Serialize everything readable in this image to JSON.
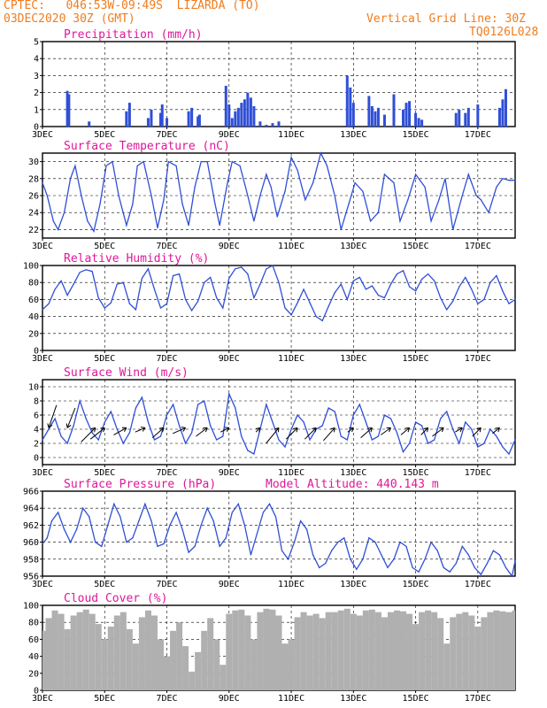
{
  "header": {
    "line1": "CPTEC:   046:53W-09:49S  LIZARDA (TO)",
    "line2": "03DEC2020 30Z (GMT)",
    "right1": "Vertical Grid Line: 30Z",
    "right2": "TQ0126L028",
    "model_altitude": "Model Altitude: 440.143 m"
  },
  "colors": {
    "header": "#f07c1e",
    "title": "#e0169a",
    "line": "#2f4fd6",
    "bar": "#2f4fd6",
    "cloud": "#b0b0b0"
  },
  "x_tick_labels": [
    "3DEC",
    "5DEC",
    "7DEC",
    "9DEC",
    "11DEC",
    "13DEC",
    "15DEC",
    "17DEC"
  ],
  "chart_data": [
    {
      "type": "bar",
      "title": "Precipitation (mm/h)",
      "ylim": [
        0,
        5
      ],
      "yticks": [
        0,
        1,
        2,
        3,
        4,
        5
      ],
      "x_start_day": 3,
      "x_end_day": 18.2,
      "x": [
        3.8,
        3.85,
        4.5,
        5.7,
        5.8,
        6.4,
        6.5,
        6.8,
        6.85,
        7.0,
        7.7,
        7.8,
        8.0,
        8.05,
        8.9,
        9.0,
        9.1,
        9.2,
        9.3,
        9.4,
        9.5,
        9.6,
        9.7,
        9.8,
        10.0,
        10.2,
        10.4,
        10.6,
        12.8,
        12.9,
        13.0,
        13.5,
        13.6,
        13.7,
        13.8,
        14.0,
        14.3,
        14.6,
        14.7,
        14.8,
        15.0,
        15.1,
        15.2,
        16.3,
        16.4,
        16.6,
        16.7,
        17.0,
        17.7,
        17.8,
        17.9
      ],
      "values": [
        2.1,
        1.9,
        0.3,
        0.9,
        1.4,
        0.5,
        1.0,
        0.8,
        1.3,
        0.5,
        0.9,
        1.1,
        0.6,
        0.7,
        2.4,
        1.3,
        0.5,
        0.9,
        1.1,
        1.4,
        1.6,
        2.0,
        1.7,
        1.2,
        0.3,
        0.1,
        0.2,
        0.3,
        3.0,
        2.3,
        1.4,
        1.8,
        1.2,
        0.9,
        1.1,
        0.7,
        1.9,
        1.0,
        1.4,
        1.5,
        0.8,
        0.5,
        0.4,
        0.8,
        1.0,
        0.8,
        1.1,
        1.3,
        1.1,
        1.6,
        2.2
      ]
    },
    {
      "type": "line",
      "title": "Surface Temperature (nC)",
      "ylim": [
        21,
        31
      ],
      "yticks": [
        22,
        24,
        26,
        28,
        30
      ],
      "x_start_day": 3,
      "x_end_day": 18.2,
      "x": [
        3.0,
        3.15,
        3.35,
        3.5,
        3.7,
        3.9,
        4.05,
        4.25,
        4.45,
        4.65,
        4.85,
        5.05,
        5.25,
        5.45,
        5.7,
        5.9,
        6.05,
        6.25,
        6.5,
        6.7,
        6.9,
        7.05,
        7.3,
        7.5,
        7.7,
        7.9,
        8.1,
        8.3,
        8.55,
        8.7,
        8.95,
        9.1,
        9.35,
        9.6,
        9.8,
        10.0,
        10.2,
        10.35,
        10.55,
        10.8,
        11.0,
        11.2,
        11.45,
        11.7,
        11.95,
        12.15,
        12.4,
        12.6,
        12.85,
        13.05,
        13.3,
        13.55,
        13.8,
        14.0,
        14.3,
        14.5,
        14.75,
        15.0,
        15.3,
        15.5,
        15.75,
        15.95,
        16.2,
        16.5,
        16.7,
        16.95,
        17.1,
        17.35,
        17.6,
        17.8,
        18.0,
        18.2
      ],
      "values": [
        27.5,
        26.0,
        23.0,
        22.0,
        24.0,
        28.0,
        29.5,
        26.0,
        23.0,
        21.8,
        25.0,
        29.5,
        30.0,
        26.0,
        22.5,
        25.0,
        29.5,
        30.0,
        26.0,
        22.2,
        25.5,
        30.0,
        29.5,
        25.0,
        22.5,
        27.0,
        30.0,
        30.0,
        25.0,
        22.5,
        27.5,
        30.0,
        29.5,
        26.0,
        23.0,
        26.0,
        28.5,
        27.0,
        23.5,
        26.5,
        30.5,
        29.0,
        25.5,
        27.5,
        31.0,
        29.5,
        26.0,
        22.0,
        25.0,
        27.5,
        26.5,
        23.0,
        24.0,
        28.5,
        27.5,
        23.0,
        25.5,
        28.5,
        27.0,
        23.0,
        25.5,
        28.0,
        22.0,
        26.0,
        28.5,
        26.0,
        25.5,
        24.0,
        27.0,
        28.0,
        27.8,
        27.8
      ]
    },
    {
      "type": "line",
      "title": "Relative Humidity (%)",
      "ylim": [
        0,
        100
      ],
      "yticks": [
        0,
        20,
        40,
        60,
        80,
        100
      ],
      "x_start_day": 3,
      "x_end_day": 18.2,
      "x": [
        3.0,
        3.2,
        3.4,
        3.6,
        3.8,
        4.0,
        4.2,
        4.4,
        4.6,
        4.8,
        5.0,
        5.2,
        5.4,
        5.6,
        5.8,
        6.0,
        6.2,
        6.4,
        6.6,
        6.8,
        7.0,
        7.2,
        7.4,
        7.6,
        7.8,
        8.0,
        8.2,
        8.4,
        8.6,
        8.8,
        9.0,
        9.2,
        9.4,
        9.6,
        9.8,
        10.0,
        10.2,
        10.4,
        10.6,
        10.8,
        11.0,
        11.2,
        11.4,
        11.6,
        11.8,
        12.0,
        12.2,
        12.4,
        12.6,
        12.8,
        13.0,
        13.2,
        13.4,
        13.6,
        13.8,
        14.0,
        14.2,
        14.4,
        14.6,
        14.8,
        15.0,
        15.2,
        15.4,
        15.6,
        15.8,
        16.0,
        16.2,
        16.4,
        16.6,
        16.8,
        17.0,
        17.2,
        17.4,
        17.6,
        17.8,
        18.0,
        18.2
      ],
      "values": [
        48,
        55,
        72,
        82,
        65,
        78,
        92,
        95,
        93,
        62,
        50,
        56,
        78,
        80,
        55,
        48,
        85,
        96,
        72,
        50,
        55,
        88,
        90,
        60,
        47,
        58,
        80,
        86,
        62,
        50,
        85,
        96,
        98,
        90,
        62,
        78,
        96,
        100,
        80,
        50,
        42,
        56,
        72,
        56,
        40,
        35,
        52,
        68,
        78,
        60,
        82,
        86,
        72,
        76,
        65,
        62,
        78,
        90,
        94,
        75,
        70,
        84,
        90,
        82,
        62,
        48,
        58,
        75,
        86,
        72,
        55,
        60,
        80,
        88,
        70,
        55,
        60
      ]
    },
    {
      "type": "line",
      "title": "Surface Wind (m/s)",
      "ylim": [
        -1,
        11
      ],
      "yticks": [
        0,
        2,
        4,
        6,
        8,
        10
      ],
      "x_start_day": 3,
      "x_end_day": 18.2,
      "x": [
        3.0,
        3.2,
        3.4,
        3.6,
        3.8,
        4.0,
        4.2,
        4.4,
        4.6,
        4.8,
        5.0,
        5.2,
        5.4,
        5.6,
        5.8,
        6.0,
        6.2,
        6.4,
        6.6,
        6.8,
        7.0,
        7.2,
        7.4,
        7.6,
        7.8,
        8.0,
        8.2,
        8.4,
        8.6,
        8.8,
        9.0,
        9.2,
        9.4,
        9.6,
        9.8,
        10.0,
        10.2,
        10.4,
        10.6,
        10.8,
        11.0,
        11.2,
        11.4,
        11.6,
        11.8,
        12.0,
        12.2,
        12.4,
        12.6,
        12.8,
        13.0,
        13.2,
        13.4,
        13.6,
        13.8,
        14.0,
        14.2,
        14.4,
        14.6,
        14.8,
        15.0,
        15.2,
        15.4,
        15.6,
        15.8,
        16.0,
        16.2,
        16.4,
        16.6,
        16.8,
        17.0,
        17.2,
        17.4,
        17.6,
        17.8,
        18.0,
        18.2
      ],
      "values": [
        2.5,
        4.0,
        5.5,
        3.0,
        2.0,
        4.5,
        8.0,
        5.5,
        3.5,
        2.5,
        5.0,
        6.5,
        4.0,
        2.0,
        3.5,
        7.0,
        8.5,
        5.0,
        2.5,
        3.0,
        6.0,
        7.5,
        4.5,
        2.0,
        3.5,
        7.5,
        8.0,
        4.5,
        2.5,
        3.0,
        9.0,
        7.0,
        3.0,
        1.0,
        0.5,
        4.0,
        7.5,
        5.0,
        2.5,
        1.5,
        4.0,
        6.0,
        5.0,
        2.5,
        4.0,
        4.5,
        7.0,
        6.5,
        3.0,
        2.5,
        6.0,
        7.5,
        5.0,
        2.5,
        3.0,
        6.0,
        5.5,
        3.5,
        0.8,
        2.0,
        5.0,
        4.5,
        2.0,
        2.5,
        5.5,
        6.5,
        4.0,
        2.0,
        5.0,
        4.0,
        1.5,
        2.0,
        4.0,
        3.0,
        1.5,
        0.5,
        2.5
      ],
      "vectors": [
        {
          "day": 3.2,
          "dx": 0.55,
          "dy": -1.6
        },
        {
          "day": 3.8,
          "dx": 0.55,
          "dy": -1.4
        },
        {
          "day": 4.7,
          "dx": -1.0,
          "dy": 1.0
        },
        {
          "day": 5.0,
          "dx": -1.0,
          "dy": 0.8
        },
        {
          "day": 5.7,
          "dx": -0.9,
          "dy": 0.5
        },
        {
          "day": 6.3,
          "dx": -0.7,
          "dy": 0.3
        },
        {
          "day": 6.9,
          "dx": -0.8,
          "dy": 0.7
        },
        {
          "day": 7.6,
          "dx": -0.9,
          "dy": 0.4
        },
        {
          "day": 8.3,
          "dx": -0.8,
          "dy": 0.6
        },
        {
          "day": 9.0,
          "dx": -0.6,
          "dy": 0.3
        },
        {
          "day": 10.0,
          "dx": -0.3,
          "dy": 0.3
        },
        {
          "day": 10.6,
          "dx": -0.9,
          "dy": 1.1
        },
        {
          "day": 11.2,
          "dx": -0.8,
          "dy": 0.8
        },
        {
          "day": 11.8,
          "dx": -0.8,
          "dy": 0.8
        },
        {
          "day": 12.4,
          "dx": -0.8,
          "dy": 0.9
        },
        {
          "day": 13.0,
          "dx": -0.4,
          "dy": 0.3
        },
        {
          "day": 13.6,
          "dx": -0.8,
          "dy": 0.7
        },
        {
          "day": 14.2,
          "dx": -0.7,
          "dy": 0.5
        },
        {
          "day": 14.8,
          "dx": -0.6,
          "dy": 0.5
        },
        {
          "day": 15.4,
          "dx": -0.5,
          "dy": 0.5
        },
        {
          "day": 15.9,
          "dx": -0.8,
          "dy": 0.6
        },
        {
          "day": 16.5,
          "dx": -0.5,
          "dy": 0.3
        },
        {
          "day": 17.1,
          "dx": -0.6,
          "dy": 0.6
        },
        {
          "day": 17.7,
          "dx": -0.5,
          "dy": 0.4
        }
      ]
    },
    {
      "type": "line",
      "title": "Surface Pressure (hPa)",
      "ylim": [
        956,
        966
      ],
      "yticks": [
        956,
        958,
        960,
        962,
        964,
        966
      ],
      "x_start_day": 3,
      "x_end_day": 18.2,
      "x": [
        3.0,
        3.15,
        3.3,
        3.5,
        3.7,
        3.9,
        4.1,
        4.3,
        4.5,
        4.7,
        4.9,
        5.1,
        5.3,
        5.5,
        5.7,
        5.9,
        6.1,
        6.3,
        6.5,
        6.7,
        6.9,
        7.1,
        7.3,
        7.5,
        7.7,
        7.9,
        8.1,
        8.3,
        8.5,
        8.7,
        8.9,
        9.1,
        9.3,
        9.5,
        9.7,
        9.9,
        10.1,
        10.3,
        10.5,
        10.7,
        10.9,
        11.1,
        11.3,
        11.5,
        11.7,
        11.9,
        12.1,
        12.3,
        12.5,
        12.7,
        12.9,
        13.1,
        13.3,
        13.5,
        13.7,
        13.9,
        14.1,
        14.3,
        14.5,
        14.7,
        14.9,
        15.1,
        15.3,
        15.5,
        15.7,
        15.9,
        16.1,
        16.3,
        16.5,
        16.7,
        16.9,
        17.1,
        17.3,
        17.5,
        17.7,
        17.9,
        18.1,
        18.2
      ],
      "values": [
        959.8,
        960.5,
        962.5,
        963.5,
        961.5,
        960.0,
        961.5,
        964.0,
        963.0,
        960.0,
        959.5,
        962.0,
        964.5,
        963.0,
        960.0,
        960.5,
        962.5,
        964.5,
        962.5,
        959.5,
        959.8,
        962.0,
        963.5,
        961.5,
        958.8,
        959.5,
        962.0,
        964.0,
        962.5,
        959.5,
        960.5,
        963.5,
        964.5,
        962.0,
        958.5,
        961.0,
        963.5,
        964.5,
        963.0,
        959.0,
        958.0,
        960.0,
        962.5,
        961.5,
        958.5,
        957.0,
        957.5,
        959.0,
        960.0,
        960.5,
        958.0,
        956.8,
        958.0,
        960.5,
        960.0,
        958.5,
        957.0,
        958.0,
        960.0,
        959.5,
        957.0,
        956.5,
        958.0,
        960.0,
        959.0,
        957.0,
        956.5,
        957.5,
        959.5,
        958.5,
        957.0,
        956.2,
        957.5,
        959.0,
        958.5,
        957.0,
        956.0,
        957.8
      ]
    },
    {
      "type": "bar",
      "title": "Cloud Cover (%)",
      "ylim": [
        0,
        100
      ],
      "yticks": [
        0,
        20,
        40,
        60,
        80,
        100
      ],
      "x_start_day": 3,
      "x_end_day": 18.2,
      "x": [
        3.0,
        3.2,
        3.4,
        3.6,
        3.8,
        4.0,
        4.2,
        4.4,
        4.6,
        4.8,
        5.0,
        5.2,
        5.4,
        5.6,
        5.8,
        6.0,
        6.2,
        6.4,
        6.6,
        6.8,
        7.0,
        7.2,
        7.4,
        7.6,
        7.8,
        8.0,
        8.2,
        8.4,
        8.6,
        8.8,
        9.0,
        9.2,
        9.4,
        9.6,
        9.8,
        10.0,
        10.2,
        10.4,
        10.6,
        10.8,
        11.0,
        11.2,
        11.4,
        11.6,
        11.8,
        12.0,
        12.2,
        12.4,
        12.6,
        12.8,
        13.0,
        13.2,
        13.4,
        13.6,
        13.8,
        14.0,
        14.2,
        14.4,
        14.6,
        14.8,
        15.0,
        15.2,
        15.4,
        15.6,
        15.8,
        16.0,
        16.2,
        16.4,
        16.6,
        16.8,
        17.0,
        17.2,
        17.4,
        17.6,
        17.8,
        18.0,
        18.2
      ],
      "values": [
        70,
        85,
        94,
        90,
        72,
        88,
        92,
        95,
        90,
        78,
        60,
        75,
        88,
        92,
        72,
        55,
        86,
        94,
        88,
        60,
        40,
        70,
        80,
        52,
        22,
        45,
        70,
        85,
        60,
        30,
        90,
        94,
        95,
        88,
        60,
        92,
        96,
        95,
        88,
        55,
        60,
        86,
        92,
        88,
        90,
        85,
        92,
        92,
        94,
        96,
        90,
        88,
        94,
        95,
        92,
        86,
        92,
        94,
        93,
        90,
        78,
        92,
        94,
        92,
        85,
        55,
        86,
        90,
        92,
        88,
        75,
        86,
        92,
        94,
        93,
        92,
        94
      ]
    }
  ]
}
